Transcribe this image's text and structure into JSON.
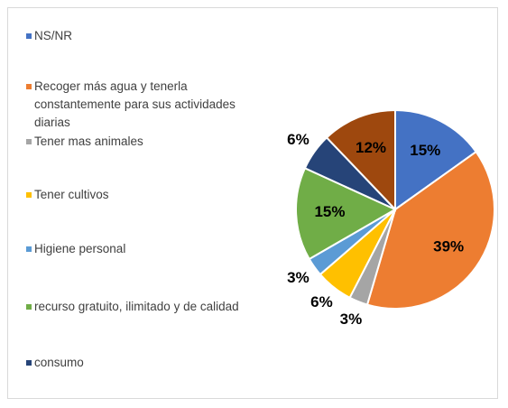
{
  "chart_data": {
    "type": "pie",
    "categories": [
      "NS/NR",
      "Recoger más agua y tenerla constantemente para sus actividades diarias",
      "Tener mas animales",
      "Tener cultivos",
      "Higiene personal",
      "recurso gratuito, ilimitado y de calidad",
      "consumo",
      null
    ],
    "values": [
      15,
      39,
      3,
      6,
      3,
      15,
      6,
      12
    ],
    "value_labels": [
      "15%",
      "39%",
      "3%",
      "6%",
      "3%",
      "15%",
      "6%",
      "12%"
    ],
    "colors": [
      "#4472c4",
      "#ed7d31",
      "#a5a5a5",
      "#ffc000",
      "#5b9bd5",
      "#70ad47",
      "#264478",
      "#9e480e"
    ],
    "legend": "left"
  }
}
